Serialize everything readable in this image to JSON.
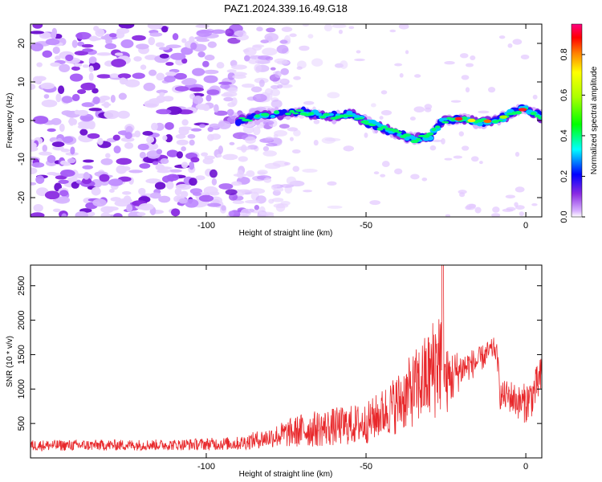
{
  "title": "PAZ1.2024.339.16.49.G18",
  "chart_data": [
    {
      "type": "heatmap",
      "xlabel": "Height of straight line (km)",
      "ylabel": "Frequency (Hz)",
      "xlim": [
        -155,
        5
      ],
      "ylim": [
        -25,
        25
      ],
      "xticks": [
        -100,
        -50,
        0
      ],
      "yticks": [
        -20,
        -10,
        0,
        10,
        20
      ],
      "colorbar": {
        "label": "Normalized spectral amplitude",
        "range": [
          0,
          0.95
        ],
        "ticks": [
          "0.0",
          "0.2",
          "0.4",
          "0.6",
          "0.8"
        ],
        "colormap": "rainbow"
      },
      "ridge": {
        "x": [
          -90,
          -80,
          -70,
          -62,
          -55,
          -48,
          -40,
          -35,
          -30,
          -26,
          -20,
          -14,
          -8,
          -3,
          0,
          5
        ],
        "y": [
          0,
          1.5,
          2.2,
          1,
          1.5,
          -1,
          -3.5,
          -5,
          -4,
          0,
          0.5,
          -0.5,
          0.5,
          2.5,
          3,
          1
        ]
      },
      "background_noise_range_x": [
        -155,
        -75
      ]
    },
    {
      "type": "line",
      "xlabel": "Height of straight line (km)",
      "ylabel": "SNR (10 * v/v)",
      "xlim": [
        -155,
        5
      ],
      "ylim": [
        0,
        2800
      ],
      "xticks": [
        -100,
        -50,
        0
      ],
      "yticks": [
        500,
        1000,
        1500,
        2000,
        2500
      ],
      "color": "#e8282b",
      "envelope": {
        "x": [
          -155,
          -110,
          -90,
          -80,
          -70,
          -60,
          -50,
          -45,
          -40,
          -35,
          -30,
          -27,
          -25,
          -20,
          -15,
          -10,
          -9,
          -8,
          -5,
          -2,
          0,
          2,
          5
        ],
        "y": [
          180,
          190,
          210,
          300,
          400,
          450,
          500,
          650,
          800,
          1000,
          1200,
          1500,
          1100,
          1300,
          1400,
          1600,
          1500,
          900,
          900,
          800,
          800,
          900,
          1200
        ],
        "amplitude": [
          80,
          80,
          100,
          150,
          250,
          280,
          300,
          350,
          450,
          550,
          700,
          900,
          500,
          250,
          200,
          150,
          150,
          200,
          250,
          250,
          300,
          300,
          300
        ]
      },
      "peak": {
        "x": -26,
        "y": 2800
      }
    }
  ]
}
